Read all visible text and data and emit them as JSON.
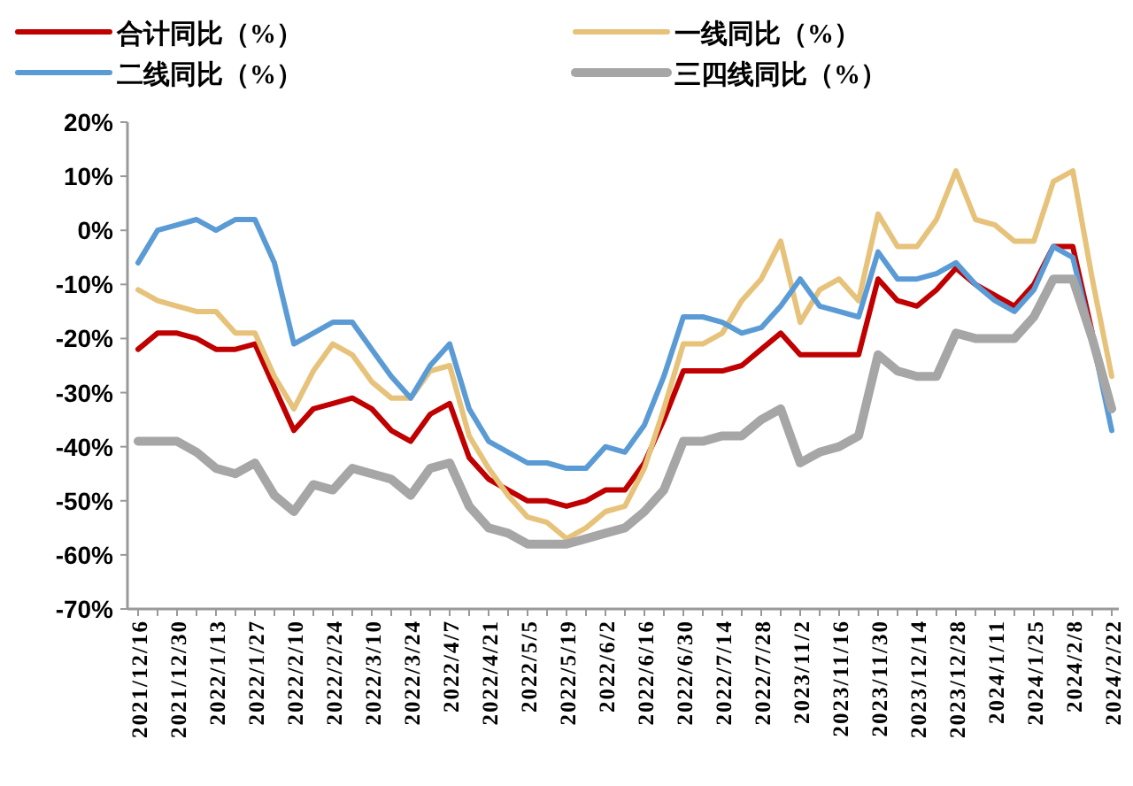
{
  "chart_data": {
    "type": "line",
    "categories": [
      "2021/12/16",
      null,
      "2021/12/30",
      null,
      "2022/1/13",
      null,
      "2022/1/27",
      null,
      "2022/2/10",
      null,
      "2022/2/24",
      null,
      "2022/3/10",
      null,
      "2022/3/24",
      null,
      "2022/4/7",
      null,
      "2022/4/21",
      null,
      "2022/5/5",
      null,
      "2022/5/19",
      null,
      "2022/6/2",
      null,
      "2022/6/16",
      null,
      "2022/6/30",
      null,
      "2022/7/14",
      null,
      "2022/7/28",
      null,
      "2023/11/2",
      null,
      "2023/11/16",
      null,
      "2023/11/30",
      null,
      "2023/12/14",
      null,
      "2023/12/28",
      null,
      "2024/1/11",
      null,
      "2024/1/25",
      null,
      "2024/2/8",
      null,
      "2024/2/22"
    ],
    "series": [
      {
        "name": "合计同比（%）",
        "color": "#c00000",
        "values": [
          -22,
          -19,
          -19,
          -20,
          -22,
          -22,
          -21,
          -29,
          -37,
          -33,
          -32,
          -31,
          -33,
          -37,
          -39,
          -34,
          -32,
          -42,
          -46,
          -48,
          -50,
          -50,
          -51,
          -50,
          -48,
          -48,
          -43,
          -35,
          -26,
          -26,
          -26,
          -25,
          -22,
          -19,
          -23,
          -23,
          -23,
          -23,
          -9,
          -13,
          -14,
          -11,
          -7,
          -10,
          -12,
          -14,
          -10,
          -3,
          -3,
          -19,
          null
        ]
      },
      {
        "name": "一线同比（%）",
        "color": "#e6c27a",
        "values": [
          -11,
          -13,
          -14,
          -15,
          -15,
          -19,
          -19,
          -27,
          -33,
          -26,
          -21,
          -23,
          -28,
          -31,
          -31,
          -26,
          -25,
          -38,
          -44,
          -49,
          -53,
          -54,
          -57,
          -55,
          -52,
          -51,
          -44,
          -33,
          -21,
          -21,
          -19,
          -13,
          -9,
          -2,
          -17,
          -11,
          -9,
          -13,
          3,
          -3,
          -3,
          2,
          11,
          2,
          1,
          -2,
          -2,
          9,
          11,
          -9,
          -27
        ]
      },
      {
        "name": "二线同比（%）",
        "color": "#5b9bd5",
        "values": [
          -6,
          0,
          1,
          2,
          0,
          2,
          2,
          -6,
          -21,
          -19,
          -17,
          -17,
          -22,
          -27,
          -31,
          -25,
          -21,
          -33,
          -39,
          -41,
          -43,
          -43,
          -44,
          -44,
          -40,
          -41,
          -36,
          -27,
          -16,
          -16,
          -17,
          -19,
          -18,
          -14,
          -9,
          -14,
          -15,
          -16,
          -4,
          -9,
          -9,
          -8,
          -6,
          -10,
          -13,
          -15,
          -11,
          -3,
          -5,
          -20,
          -37
        ]
      },
      {
        "name": "三四线同比（%）",
        "color": "#a6a6a6",
        "values": [
          -39,
          -39,
          -39,
          -41,
          -44,
          -45,
          -43,
          -49,
          -52,
          -47,
          -48,
          -44,
          -45,
          -46,
          -49,
          -44,
          -43,
          -51,
          -55,
          -56,
          -58,
          -58,
          -58,
          -57,
          -56,
          -55,
          -52,
          -48,
          -39,
          -39,
          -38,
          -38,
          -35,
          -33,
          -43,
          -41,
          -40,
          -38,
          -23,
          -26,
          -27,
          -27,
          -19,
          -20,
          -20,
          -20,
          -16,
          -9,
          -9,
          -20,
          -33
        ]
      }
    ],
    "ylim": [
      -70,
      20
    ],
    "yticks": [
      {
        "value": 20,
        "label": "20%"
      },
      {
        "value": 10,
        "label": "10%"
      },
      {
        "value": 0,
        "label": "0%"
      },
      {
        "value": -10,
        "label": "-10%"
      },
      {
        "value": -20,
        "label": "-20%"
      },
      {
        "value": -30,
        "label": "-30%"
      },
      {
        "value": -40,
        "label": "-40%"
      },
      {
        "value": -50,
        "label": "-50%"
      },
      {
        "value": -60,
        "label": "-60%"
      },
      {
        "value": -70,
        "label": "-70%"
      }
    ],
    "grid": false,
    "legend": "top",
    "marker": "none",
    "line_style": "solid"
  }
}
